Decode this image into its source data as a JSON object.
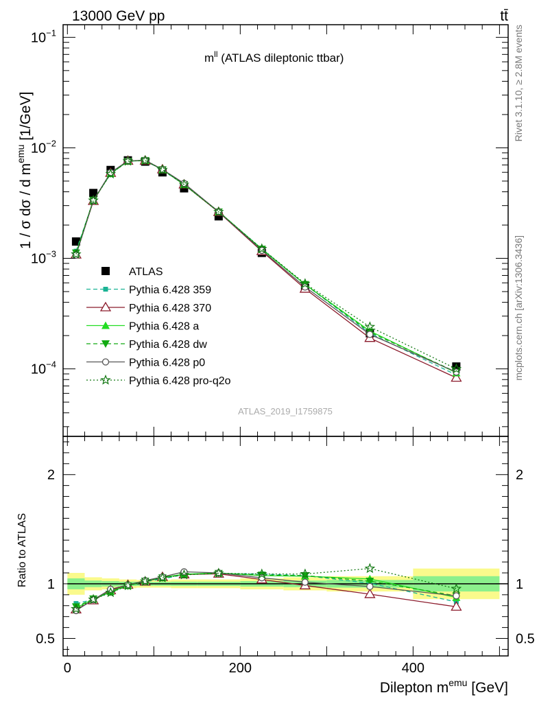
{
  "header": {
    "energy_label": "13000 GeV pp",
    "process_label": "tt̄"
  },
  "side_texts": {
    "rivet": "Rivet 3.1.10, ≥ 2.8M events",
    "source": "mcplots.cern.ch [arXiv:1306.3436]"
  },
  "colors": {
    "ATLAS": "#000000",
    "Pythia 6.428 359": "#1ab394",
    "Pythia 6.428 370": "#8b1a2b",
    "Pythia 6.428 a": "#22dd22",
    "Pythia 6.428 dw": "#11aa11",
    "Pythia 6.428 p0": "#555555",
    "Pythia 6.428 pro-q2o": "#117711",
    "band_outer": "#fafa8c",
    "band_inner": "#8cf08c"
  },
  "chart_data": [
    {
      "type": "line",
      "panel": "main",
      "title": "m^ll (ATLAS dileptonic ttbar)",
      "title_main": "m",
      "title_sup": "ll",
      "title_rest": " (ATLAS dileptonic ttbar)",
      "ylabel": "1 / σ  dσ / d m^emu [1/GeV]",
      "ylabel_pre": "1 / σ  dσ / d m",
      "ylabel_sup": "emu",
      "ylabel_post": " [1/GeV]",
      "watermark": "ATLAS_2019_I1759875",
      "y_scale": "log",
      "xlim": [
        -5,
        510
      ],
      "ylim": [
        2.45e-05,
        0.13
      ],
      "y_ticks": [
        {
          "value": 0.1,
          "base": "10",
          "exp": "−1"
        },
        {
          "value": 0.01,
          "base": "10",
          "exp": "−2"
        },
        {
          "value": 0.001,
          "base": "10",
          "exp": "−3"
        },
        {
          "value": 0.0001,
          "base": "10",
          "exp": "−4"
        }
      ],
      "legend_position": "center-left",
      "x": [
        10,
        30,
        50,
        70,
        90,
        110,
        135,
        175,
        225,
        275,
        350,
        450
      ],
      "series": [
        {
          "name": "ATLAS",
          "marker": "square",
          "line": "none",
          "values": [
            0.00142,
            0.0039,
            0.0063,
            0.0077,
            0.0075,
            0.006,
            0.0043,
            0.0024,
            0.00112,
            0.00054,
            0.00021,
            0.000105
          ]
        },
        {
          "name": "Pythia 6.428 359",
          "marker": "square-small",
          "line": "dashed",
          "values": [
            0.00116,
            0.00333,
            0.00582,
            0.00757,
            0.00765,
            0.00628,
            0.00465,
            0.00265,
            0.00122,
            0.00058,
            0.00021,
            8.8e-05
          ]
        },
        {
          "name": "Pythia 6.428 370",
          "marker": "triangle-open",
          "line": "solid",
          "values": [
            0.00108,
            0.0033,
            0.00592,
            0.00762,
            0.00765,
            0.00637,
            0.00465,
            0.00262,
            0.00116,
            0.00053,
            0.00019,
            8.3e-05
          ]
        },
        {
          "name": "Pythia 6.428 a",
          "marker": "triangle",
          "line": "solid",
          "values": [
            0.00111,
            0.00335,
            0.00585,
            0.00758,
            0.0077,
            0.00635,
            0.00467,
            0.00265,
            0.00121,
            0.00058,
            0.00022,
            9.2e-05
          ]
        },
        {
          "name": "Pythia 6.428 dw",
          "marker": "triangle-down",
          "line": "dashed",
          "values": [
            0.00112,
            0.00336,
            0.00583,
            0.00755,
            0.00768,
            0.00633,
            0.00466,
            0.00263,
            0.00121,
            0.00058,
            0.000215,
            9.35e-05
          ]
        },
        {
          "name": "Pythia 6.428 p0",
          "marker": "circle-open",
          "line": "solid",
          "values": [
            0.00107,
            0.00333,
            0.00598,
            0.00762,
            0.00772,
            0.00638,
            0.00477,
            0.00264,
            0.00118,
            0.00055,
            0.000205,
            9.35e-05
          ]
        },
        {
          "name": "Pythia 6.428 pro-q2o",
          "marker": "star-open",
          "line": "dotted",
          "values": [
            0.00109,
            0.00334,
            0.0058,
            0.00757,
            0.00767,
            0.00633,
            0.00465,
            0.00263,
            0.00122,
            0.00059,
            0.00024,
            0.0001
          ]
        }
      ]
    },
    {
      "type": "line",
      "panel": "ratio",
      "ylabel": "Ratio to ATLAS",
      "xlabel": "Dilepton m^emu [GeV]",
      "xlabel_pre": "Dilepton m",
      "xlabel_sup": "emu",
      "xlabel_post": " [GeV]",
      "xlim": [
        -5,
        510
      ],
      "ylim": [
        0.34,
        2.35
      ],
      "x_ticks": [
        0,
        200,
        400
      ],
      "y_ticks": [
        0.5,
        1,
        2
      ],
      "reference_line": 1,
      "uncertainty_band": {
        "edges": [
          0,
          20,
          40,
          60,
          80,
          100,
          120,
          150,
          200,
          250,
          300,
          400,
          500
        ],
        "outer": [
          0.1,
          0.06,
          0.05,
          0.04,
          0.035,
          0.035,
          0.04,
          0.04,
          0.05,
          0.06,
          0.07,
          0.14
        ],
        "inner": [
          0.05,
          0.03,
          0.025,
          0.02,
          0.018,
          0.018,
          0.02,
          0.02,
          0.025,
          0.03,
          0.035,
          0.07
        ]
      },
      "x": [
        10,
        30,
        50,
        70,
        90,
        110,
        135,
        175,
        225,
        275,
        350,
        450
      ],
      "series": [
        {
          "name": "Pythia 6.428 359",
          "values": [
            0.82,
            0.855,
            0.925,
            0.983,
            1.02,
            1.045,
            1.085,
            1.095,
            1.09,
            1.075,
            1.005,
            0.835
          ]
        },
        {
          "name": "Pythia 6.428 370",
          "values": [
            0.765,
            0.848,
            0.94,
            0.99,
            1.02,
            1.062,
            1.085,
            1.092,
            1.04,
            0.985,
            0.905,
            0.79
          ]
        },
        {
          "name": "Pythia 6.428 a",
          "values": [
            0.78,
            0.86,
            0.93,
            0.985,
            1.027,
            1.058,
            1.088,
            1.1,
            1.075,
            1.07,
            1.045,
            0.875
          ]
        },
        {
          "name": "Pythia 6.428 dw",
          "values": [
            0.79,
            0.862,
            0.925,
            0.98,
            1.025,
            1.055,
            1.085,
            1.095,
            1.08,
            1.075,
            1.025,
            0.89
          ]
        },
        {
          "name": "Pythia 6.428 p0",
          "values": [
            0.755,
            0.855,
            0.95,
            0.99,
            1.03,
            1.063,
            1.11,
            1.1,
            1.055,
            1.015,
            0.975,
            0.89
          ]
        },
        {
          "name": "Pythia 6.428 pro-q2o",
          "values": [
            0.77,
            0.857,
            0.92,
            0.983,
            1.023,
            1.055,
            1.082,
            1.097,
            1.09,
            1.09,
            1.14,
            0.955
          ]
        }
      ]
    }
  ]
}
